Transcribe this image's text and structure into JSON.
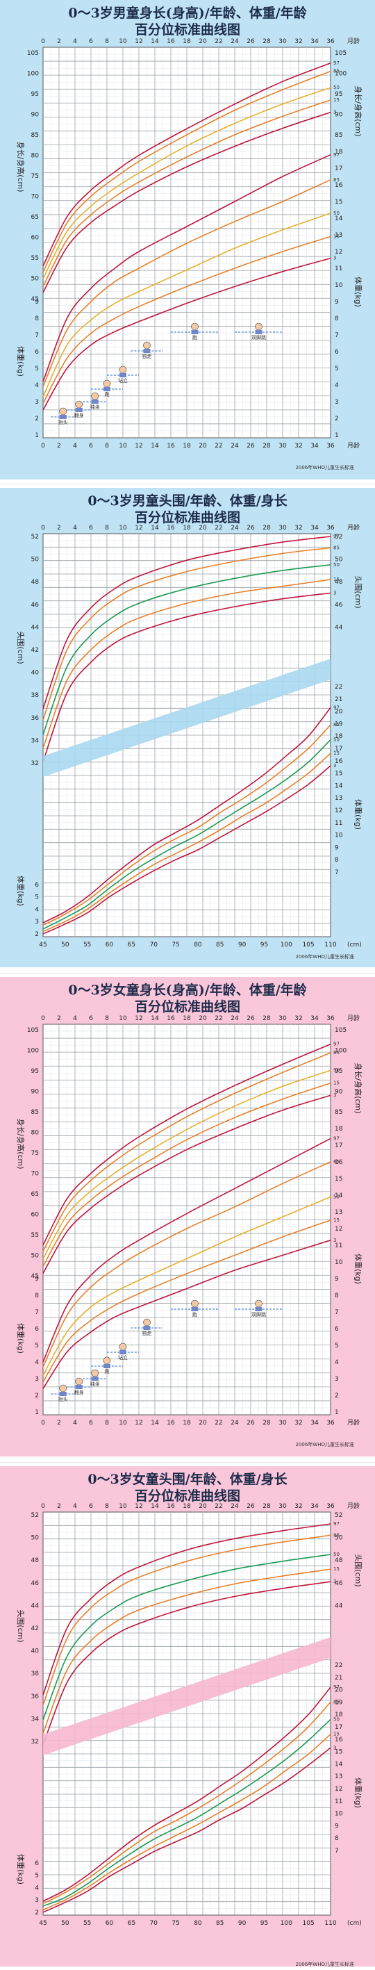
{
  "panels": [
    {
      "id": "boys-length",
      "title_line1": "0～3岁男童身长(身高)/年龄、体重/年龄",
      "title_line2": "百分位标准曲线图",
      "bg_color": "#bfe3f5",
      "month_label": "月龄",
      "length_axis_label": "身长/身高(cm)",
      "weight_axis_label": "体重(kg)",
      "credit": "2006年WHO儿童生长标准",
      "milestones": [
        "抬头",
        "翻身",
        "独坐",
        "爬",
        "站立",
        "独走",
        "跑",
        "双脚跳"
      ]
    },
    {
      "id": "boys-head",
      "title_line1": "0～3岁男童头围/年龄、体重/身长",
      "title_line2": "百分位标准曲线图",
      "bg_color": "#bfe3f5",
      "month_label": "月龄",
      "head_axis_label": "头围(cm)",
      "weight_axis_label": "体重(kg)",
      "length_unit": "(cm)",
      "credit": "2006年WHO儿童生长标准"
    },
    {
      "id": "girls-length",
      "title_line1": "0～3岁女童身长(身高)/年龄、体重/年龄",
      "title_line2": "百分位标准曲线图",
      "bg_color": "#f9c6da",
      "month_label": "月龄",
      "length_axis_label": "身长/身高(cm)",
      "weight_axis_label": "体重(kg)",
      "credit": "2006年WHO儿童生长标准",
      "milestones": [
        "抬头",
        "翻身",
        "独坐",
        "爬",
        "站立",
        "独走",
        "跑",
        "双脚跳"
      ]
    },
    {
      "id": "girls-head",
      "title_line1": "0～3岁女童头围/年龄、体重/身长",
      "title_line2": "百分位标准曲线图",
      "bg_color": "#f9c6da",
      "month_label": "月龄",
      "head_axis_label": "头围(cm)",
      "weight_axis_label": "体重(kg)",
      "length_unit": "(cm)",
      "credit": "2006年WHO儿童生长标准"
    }
  ],
  "chart_data": [
    {
      "type": "line",
      "title": "0～3岁男童身长(身高)/年龄",
      "xlabel": "月龄",
      "ylabel": "身长/身高(cm)",
      "x": [
        0,
        3,
        6,
        9,
        12,
        18,
        24,
        30,
        36
      ],
      "xlim": [
        0,
        36
      ],
      "ylim": [
        45,
        105
      ],
      "series": [
        {
          "name": "97",
          "values": [
            53.0,
            65.0,
            71.5,
            76.0,
            80.0,
            86.5,
            92.5,
            98.0,
            102.5
          ]
        },
        {
          "name": "85",
          "values": [
            51.5,
            63.5,
            70.0,
            74.5,
            78.5,
            85.0,
            91.0,
            96.0,
            100.5
          ]
        },
        {
          "name": "50",
          "values": [
            49.9,
            61.4,
            67.6,
            72.0,
            75.7,
            82.3,
            87.8,
            92.5,
            96.5
          ]
        },
        {
          "name": "15",
          "values": [
            48.0,
            59.4,
            65.5,
            69.9,
            73.5,
            79.6,
            85.0,
            89.5,
            93.5
          ]
        },
        {
          "name": "3",
          "values": [
            46.5,
            57.6,
            63.6,
            67.7,
            71.3,
            77.2,
            82.2,
            86.6,
            90.5
          ]
        }
      ]
    },
    {
      "type": "line",
      "title": "0～3岁男童体重/年龄",
      "xlabel": "月龄",
      "ylabel": "体重(kg)",
      "x": [
        0,
        3,
        6,
        9,
        12,
        18,
        24,
        30,
        36
      ],
      "xlim": [
        0,
        36
      ],
      "ylim": [
        1,
        18
      ],
      "series": [
        {
          "name": "97",
          "values": [
            4.2,
            8.0,
            9.8,
            11.0,
            12.0,
            13.5,
            15.0,
            16.5,
            17.8
          ]
        },
        {
          "name": "85",
          "values": [
            3.9,
            7.3,
            9.0,
            10.2,
            11.0,
            12.5,
            13.8,
            15.0,
            16.3
          ]
        },
        {
          "name": "50",
          "values": [
            3.3,
            6.4,
            7.9,
            8.9,
            9.6,
            10.9,
            12.2,
            13.3,
            14.3
          ]
        },
        {
          "name": "15",
          "values": [
            2.9,
            5.6,
            7.1,
            8.0,
            8.7,
            9.9,
            11.0,
            12.0,
            12.9
          ]
        },
        {
          "name": "3",
          "values": [
            2.5,
            5.0,
            6.4,
            7.2,
            7.8,
            8.9,
            9.9,
            10.8,
            11.6
          ]
        }
      ]
    },
    {
      "type": "line",
      "title": "0～3岁男童头围/年龄",
      "xlabel": "月龄",
      "ylabel": "头围(cm)",
      "x": [
        0,
        3,
        6,
        9,
        12,
        18,
        24,
        30,
        36
      ],
      "xlim": [
        0,
        36
      ],
      "ylim": [
        32,
        52
      ],
      "series": [
        {
          "name": "97",
          "values": [
            36.8,
            42.9,
            45.7,
            47.4,
            48.5,
            49.9,
            50.8,
            51.5,
            52.0
          ]
        },
        {
          "name": "85",
          "values": [
            35.8,
            42.0,
            44.8,
            46.5,
            47.6,
            48.9,
            49.8,
            50.5,
            51.0
          ]
        },
        {
          "name": "50",
          "values": [
            34.5,
            40.5,
            43.3,
            45.0,
            46.1,
            47.4,
            48.3,
            49.0,
            49.5
          ]
        },
        {
          "name": "15",
          "values": [
            33.3,
            39.3,
            42.0,
            43.7,
            44.8,
            46.1,
            47.0,
            47.6,
            48.2
          ]
        },
        {
          "name": "3",
          "values": [
            32.1,
            38.2,
            40.9,
            42.6,
            43.6,
            44.9,
            45.8,
            46.5,
            47.0
          ]
        }
      ]
    },
    {
      "type": "line",
      "title": "0～3岁男童体重/身长",
      "xlabel": "(cm)",
      "ylabel": "体重(kg)",
      "x": [
        45,
        50,
        55,
        60,
        65,
        70,
        75,
        80,
        85,
        90,
        95,
        100,
        105,
        110
      ],
      "xlim": [
        45,
        110
      ],
      "ylim": [
        2,
        22
      ],
      "series": [
        {
          "name": "97",
          "values": [
            2.9,
            3.8,
            5.0,
            6.5,
            7.9,
            9.2,
            10.2,
            11.2,
            12.4,
            13.6,
            14.9,
            16.4,
            18.0,
            20.3
          ]
        },
        {
          "name": "85",
          "values": [
            2.7,
            3.6,
            4.7,
            6.1,
            7.5,
            8.7,
            9.7,
            10.6,
            11.8,
            12.9,
            14.1,
            15.5,
            17.0,
            18.9
          ]
        },
        {
          "name": "50",
          "values": [
            2.4,
            3.3,
            4.3,
            5.7,
            7.0,
            8.1,
            9.1,
            10.0,
            11.1,
            12.2,
            13.3,
            14.5,
            15.9,
            17.7
          ]
        },
        {
          "name": "15",
          "values": [
            2.2,
            3.0,
            4.0,
            5.3,
            6.5,
            7.6,
            8.5,
            9.4,
            10.4,
            11.5,
            12.5,
            13.7,
            15.0,
            16.6
          ]
        },
        {
          "name": "3",
          "values": [
            2.0,
            2.8,
            3.7,
            5.0,
            6.1,
            7.1,
            8.0,
            8.8,
            9.8,
            10.8,
            11.8,
            12.9,
            14.1,
            15.6
          ]
        }
      ]
    },
    {
      "type": "line",
      "title": "0～3岁女童身长(身高)/年龄",
      "xlabel": "月龄",
      "ylabel": "身长/身高(cm)",
      "x": [
        0,
        3,
        6,
        9,
        12,
        18,
        24,
        30,
        36
      ],
      "xlim": [
        0,
        36
      ],
      "ylim": [
        45,
        105
      ],
      "series": [
        {
          "name": "97",
          "values": [
            52.5,
            63.8,
            70.0,
            74.8,
            78.9,
            85.7,
            91.4,
            96.6,
            101.5
          ]
        },
        {
          "name": "85",
          "values": [
            51.0,
            62.0,
            68.3,
            73.0,
            77.0,
            83.8,
            89.5,
            94.6,
            99.4
          ]
        },
        {
          "name": "50",
          "values": [
            49.1,
            59.8,
            65.7,
            70.1,
            74.0,
            80.7,
            86.4,
            91.2,
            95.1
          ]
        },
        {
          "name": "15",
          "values": [
            47.3,
            57.7,
            63.5,
            67.9,
            71.6,
            78.2,
            83.6,
            88.1,
            92.0
          ]
        },
        {
          "name": "3",
          "values": [
            45.6,
            55.8,
            61.5,
            65.8,
            69.5,
            75.8,
            80.9,
            85.4,
            89.0
          ]
        }
      ]
    },
    {
      "type": "line",
      "title": "0～3岁女童体重/年龄",
      "xlabel": "月龄",
      "ylabel": "体重(kg)",
      "x": [
        0,
        3,
        6,
        9,
        12,
        18,
        24,
        30,
        36
      ],
      "xlim": [
        0,
        36
      ],
      "ylim": [
        1,
        18
      ],
      "series": [
        {
          "name": "97",
          "values": [
            4.0,
            7.4,
            9.2,
            10.4,
            11.3,
            12.9,
            14.4,
            15.9,
            17.4
          ]
        },
        {
          "name": "85",
          "values": [
            3.7,
            6.8,
            8.5,
            9.6,
            10.5,
            12.0,
            13.3,
            14.7,
            16.0
          ]
        },
        {
          "name": "50",
          "values": [
            3.2,
            5.8,
            7.3,
            8.2,
            8.9,
            10.2,
            11.5,
            12.7,
            13.9
          ]
        },
        {
          "name": "15",
          "values": [
            2.8,
            5.2,
            6.5,
            7.4,
            8.1,
            9.3,
            10.4,
            11.5,
            12.5
          ]
        },
        {
          "name": "3",
          "values": [
            2.4,
            4.6,
            5.8,
            6.7,
            7.3,
            8.4,
            9.5,
            10.4,
            11.3
          ]
        }
      ]
    },
    {
      "type": "line",
      "title": "0～3岁女童头围/年龄",
      "xlabel": "月龄",
      "ylabel": "头围(cm)",
      "x": [
        0,
        3,
        6,
        9,
        12,
        18,
        24,
        30,
        36
      ],
      "xlim": [
        0,
        36
      ],
      "ylim": [
        32,
        52
      ],
      "series": [
        {
          "name": "97",
          "values": [
            36.1,
            42.0,
            44.6,
            46.3,
            47.4,
            48.9,
            49.9,
            50.6,
            51.2
          ]
        },
        {
          "name": "85",
          "values": [
            35.2,
            41.1,
            43.8,
            45.4,
            46.5,
            47.9,
            48.9,
            49.6,
            50.2
          ]
        },
        {
          "name": "50",
          "values": [
            33.9,
            39.5,
            42.2,
            43.8,
            44.9,
            46.2,
            47.2,
            47.9,
            48.5
          ]
        },
        {
          "name": "15",
          "values": [
            32.7,
            38.3,
            40.9,
            42.5,
            43.6,
            44.9,
            45.9,
            46.6,
            47.2
          ]
        },
        {
          "name": "3",
          "values": [
            31.7,
            37.2,
            39.8,
            41.4,
            42.4,
            43.8,
            44.8,
            45.5,
            46.1
          ]
        }
      ]
    },
    {
      "type": "line",
      "title": "0～3岁女童体重/身长",
      "xlabel": "(cm)",
      "ylabel": "体重(kg)",
      "x": [
        45,
        50,
        55,
        60,
        65,
        70,
        75,
        80,
        85,
        90,
        95,
        100,
        105,
        110
      ],
      "xlim": [
        45,
        110
      ],
      "ylim": [
        2,
        22
      ],
      "series": [
        {
          "name": "97",
          "values": [
            2.9,
            3.8,
            5.0,
            6.4,
            7.8,
            9.0,
            10.0,
            11.0,
            12.2,
            13.4,
            14.8,
            16.3,
            18.0,
            20.2
          ]
        },
        {
          "name": "85",
          "values": [
            2.7,
            3.6,
            4.7,
            6.0,
            7.3,
            8.5,
            9.4,
            10.4,
            11.5,
            12.7,
            14.0,
            15.4,
            17.0,
            19.0
          ]
        },
        {
          "name": "50",
          "values": [
            2.5,
            3.2,
            4.3,
            5.6,
            6.8,
            7.9,
            8.8,
            9.7,
            10.8,
            11.9,
            13.1,
            14.4,
            15.9,
            17.6
          ]
        },
        {
          "name": "15",
          "values": [
            2.2,
            3.0,
            4.0,
            5.2,
            6.3,
            7.3,
            8.2,
            9.1,
            10.1,
            11.1,
            12.2,
            13.5,
            14.8,
            16.4
          ]
        },
        {
          "name": "3",
          "values": [
            2.0,
            2.8,
            3.7,
            4.9,
            5.9,
            6.9,
            7.7,
            8.5,
            9.5,
            10.4,
            11.5,
            12.6,
            13.9,
            15.3
          ]
        }
      ]
    }
  ]
}
